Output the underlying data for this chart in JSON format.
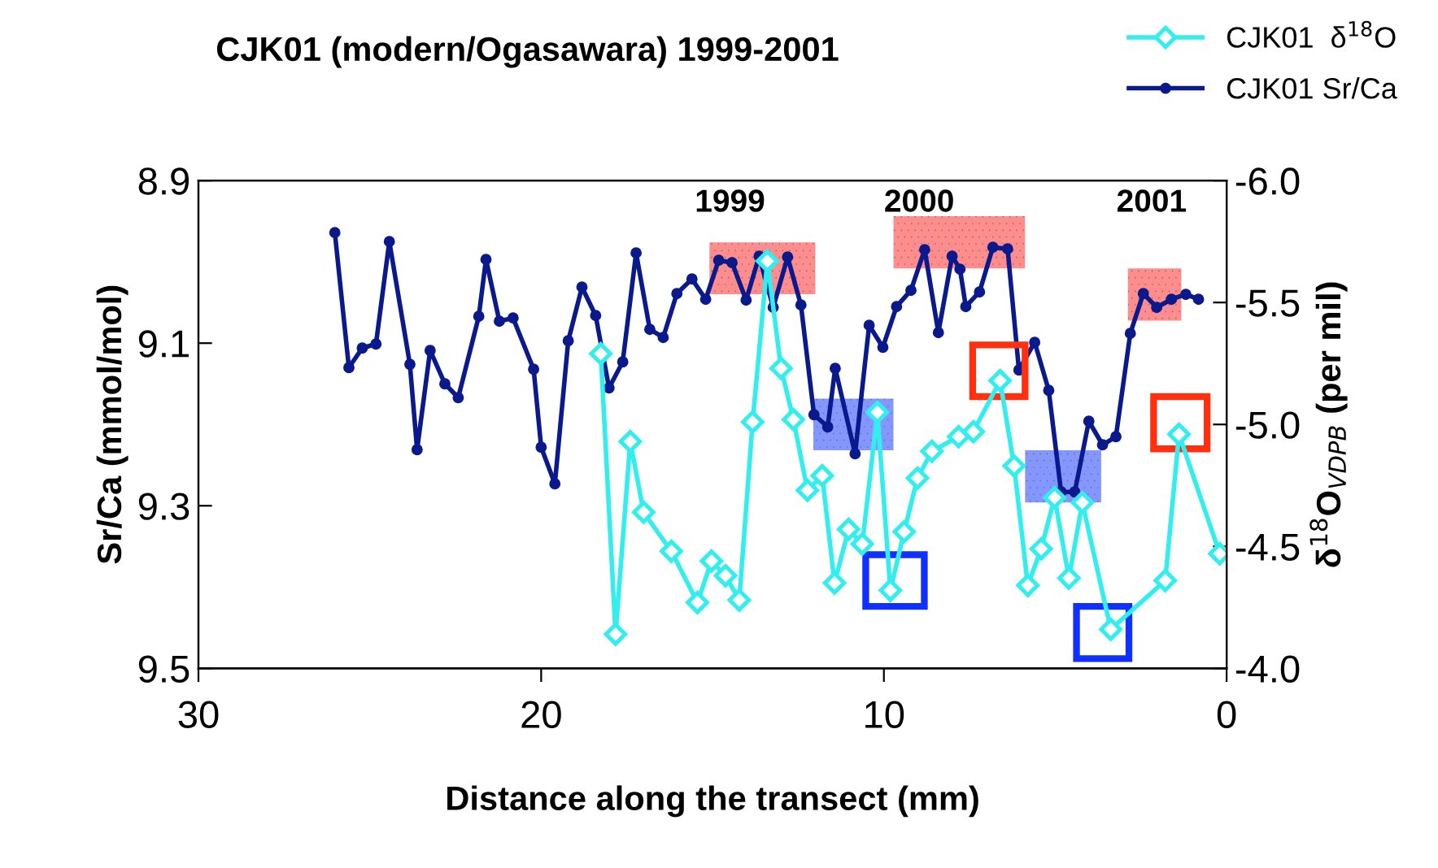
{
  "chart_data": {
    "type": "line",
    "title": "CJK01 (modern/Ogasawara) 1999-2001",
    "xlabel": "Distance along the transect (mm)",
    "ylabel": "Sr/Ca (mmol/mol)",
    "y2label": "δ$^{18}$O$_{VDPB}$ (per mil)",
    "xlim": [
      30,
      0
    ],
    "xticks": [
      30,
      20,
      10,
      0
    ],
    "ylim": [
      9.5,
      8.9
    ],
    "yticks": [
      8.9,
      9.1,
      9.3,
      9.5
    ],
    "y2lim": [
      -4.0,
      -6.0
    ],
    "y2ticks": [
      {
        "value": -6.0,
        "label": "-6.0"
      },
      {
        "value": -5.5,
        "label": "-5.5"
      },
      {
        "value": -5.0,
        "label": "-5.0"
      },
      {
        "value": -4.5,
        "label": "-4.5"
      },
      {
        "value": -4.0,
        "label": "-4.0"
      }
    ],
    "grid": false,
    "legend": "top right",
    "annotations": [
      "1999",
      "2000",
      "2001"
    ],
    "series": [
      {
        "name": "CJK01  δ$^{18}$O",
        "color": "#33eeee",
        "axis": "y2",
        "marker": "diamond",
        "x": [
          18.26,
          17.83,
          17.4,
          17.01,
          16.2,
          15.44,
          15.03,
          14.62,
          14.22,
          13.83,
          13.4,
          13.0,
          12.64,
          12.23,
          11.8,
          11.44,
          11.03,
          10.63,
          10.19,
          9.81,
          9.41,
          9.02,
          8.6,
          7.82,
          7.39,
          6.61,
          6.2,
          5.8,
          5.41,
          5.02,
          4.6,
          4.21,
          3.38,
          1.79,
          1.39,
          0.2
        ],
        "values": [
          -5.29,
          -4.14,
          -4.93,
          -4.64,
          -4.48,
          -4.27,
          -4.44,
          -4.38,
          -4.28,
          -5.01,
          -5.67,
          -5.23,
          -5.02,
          -4.73,
          -4.79,
          -4.35,
          -4.57,
          -4.51,
          -5.05,
          -4.32,
          -4.56,
          -4.78,
          -4.89,
          -4.95,
          -4.97,
          -5.18,
          -4.83,
          -4.34,
          -4.49,
          -4.7,
          -4.37,
          -4.68,
          -4.16,
          -4.36,
          -4.96,
          -4.47
        ]
      },
      {
        "name": "CJK01 Sr/Ca",
        "color": "#0a1a8c",
        "axis": "y",
        "marker": "circle",
        "x": [
          26.02,
          25.61,
          25.22,
          24.82,
          24.43,
          23.83,
          23.62,
          23.24,
          22.81,
          22.42,
          21.82,
          21.61,
          21.22,
          20.82,
          20.22,
          20.0,
          19.6,
          19.21,
          18.81,
          18.41,
          18.02,
          17.62,
          17.23,
          16.83,
          16.44,
          16.04,
          15.6,
          15.2,
          14.82,
          14.43,
          14.02,
          13.64,
          13.23,
          12.81,
          12.42,
          12.04,
          11.64,
          11.42,
          10.84,
          10.43,
          10.03,
          9.63,
          9.21,
          8.81,
          8.41,
          8.01,
          7.78,
          7.61,
          7.21,
          6.82,
          6.39,
          6.06,
          5.6,
          5.19,
          4.83,
          4.43,
          4.02,
          3.62,
          3.23,
          2.81,
          2.43,
          2.04,
          1.61,
          1.19,
          0.82
        ],
        "values": [
          8.964,
          9.13,
          9.106,
          9.101,
          8.975,
          9.126,
          9.231,
          9.109,
          9.15,
          9.167,
          9.067,
          8.997,
          9.073,
          9.069,
          9.132,
          9.228,
          9.273,
          9.097,
          9.031,
          9.066,
          9.155,
          9.123,
          8.989,
          9.083,
          9.093,
          9.039,
          9.021,
          9.046,
          8.998,
          9.001,
          9.047,
          8.993,
          9.056,
          8.994,
          9.053,
          9.188,
          9.203,
          9.131,
          9.236,
          9.078,
          9.105,
          9.055,
          9.035,
          8.985,
          9.087,
          8.993,
          9.009,
          9.055,
          9.037,
          8.982,
          8.984,
          9.133,
          9.099,
          9.158,
          9.283,
          9.283,
          9.196,
          9.225,
          9.215,
          9.088,
          9.039,
          9.056,
          9.046,
          9.04,
          9.046
        ]
      }
    ]
  }
}
